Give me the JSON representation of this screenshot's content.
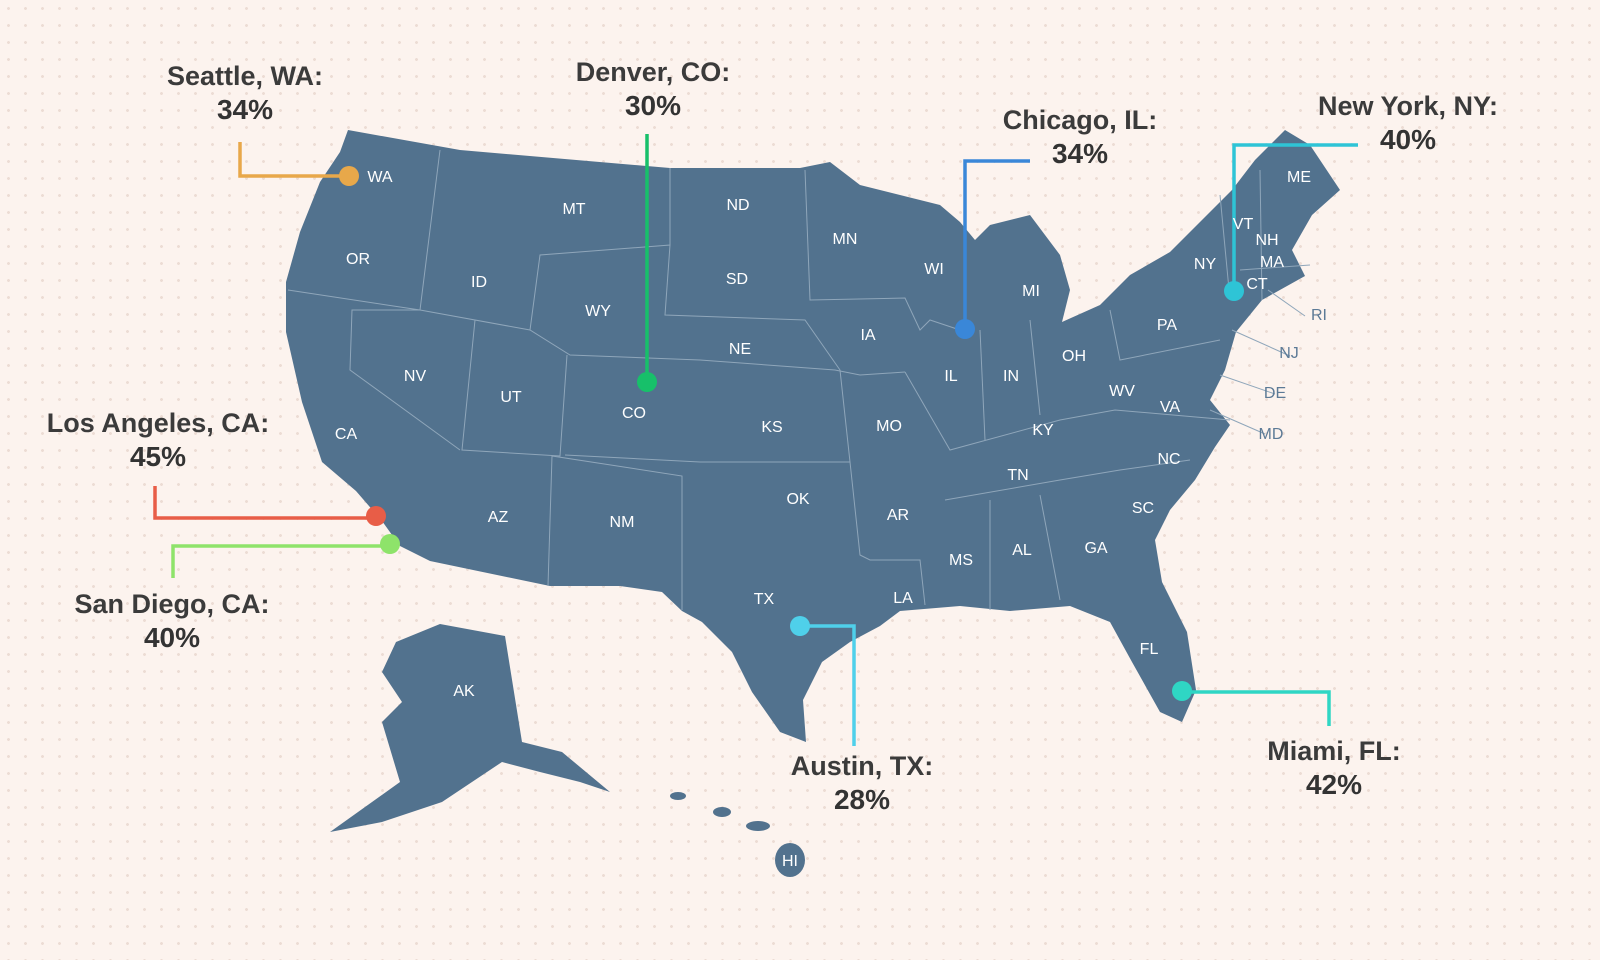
{
  "colors": {
    "background": "#fcf3ee",
    "map_fill": "#52728e",
    "text": "#333333"
  },
  "state_labels": [
    "WA",
    "OR",
    "CA",
    "NV",
    "ID",
    "MT",
    "WY",
    "UT",
    "AZ",
    "CO",
    "NM",
    "ND",
    "SD",
    "NE",
    "KS",
    "OK",
    "TX",
    "MN",
    "IA",
    "MO",
    "AR",
    "LA",
    "WI",
    "IL",
    "MI",
    "IN",
    "OH",
    "KY",
    "TN",
    "MS",
    "AL",
    "GA",
    "FL",
    "SC",
    "NC",
    "VA",
    "WV",
    "PA",
    "NY",
    "VT",
    "NH",
    "MA",
    "CT",
    "ME",
    "AK",
    "HI"
  ],
  "outside_state_labels": [
    "RI",
    "NJ",
    "DE",
    "MD"
  ],
  "callouts": [
    {
      "city": "Seattle, WA:",
      "value": "34%",
      "color": "#e8a84a"
    },
    {
      "city": "Denver, CO:",
      "value": "30%",
      "color": "#17c06a"
    },
    {
      "city": "Chicago, IL:",
      "value": "34%",
      "color": "#3a87d8"
    },
    {
      "city": "New York, NY:",
      "value": "40%",
      "color": "#2ec4d6"
    },
    {
      "city": "Los Angeles, CA:",
      "value": "45%",
      "color": "#e85d47"
    },
    {
      "city": "San Diego, CA:",
      "value": "40%",
      "color": "#8ee36a"
    },
    {
      "city": "Austin, TX:",
      "value": "28%",
      "color": "#4fd0ea"
    },
    {
      "city": "Miami, FL:",
      "value": "42%",
      "color": "#2fd6c4"
    }
  ]
}
